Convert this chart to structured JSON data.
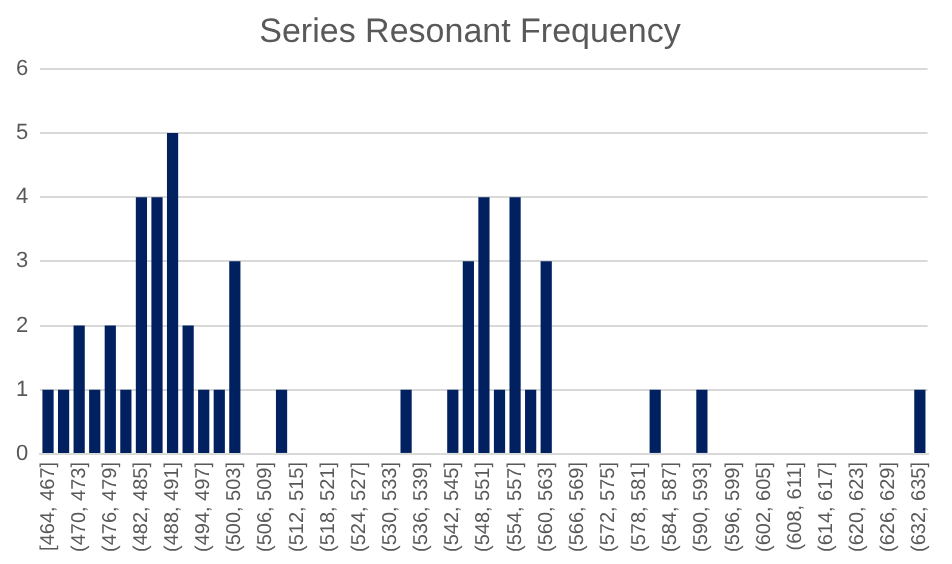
{
  "chart_data": {
    "type": "bar",
    "title": "Series Resonant Frequency",
    "categories": [
      "[464, 467]",
      null,
      "(470, 473]",
      null,
      "(476, 479]",
      null,
      "(482, 485]",
      null,
      "(488, 491]",
      null,
      "(494, 497]",
      null,
      "(500, 503]",
      null,
      "(506, 509]",
      null,
      "(512, 515]",
      null,
      "(518, 521]",
      null,
      "(524, 527]",
      null,
      "(530, 533]",
      null,
      "(536, 539]",
      null,
      "(542, 545]",
      null,
      "(548, 551]",
      null,
      "(554, 557]",
      null,
      "(560, 563]",
      null,
      "(566, 569]",
      null,
      "(572, 575]",
      null,
      "(578, 581]",
      null,
      "(584, 587]",
      null,
      "(590, 593]",
      null,
      "(596, 599]",
      null,
      "(602, 605]",
      null,
      "(608, 611]",
      null,
      "(614, 617]",
      null,
      "(620, 623]",
      null,
      "(626, 629]",
      null,
      "(632, 635]"
    ],
    "values": [
      1,
      1,
      2,
      1,
      2,
      1,
      4,
      4,
      5,
      2,
      1,
      1,
      3,
      0,
      0,
      1,
      0,
      0,
      0,
      0,
      0,
      0,
      0,
      1,
      0,
      0,
      1,
      3,
      4,
      1,
      4,
      1,
      3,
      0,
      0,
      0,
      0,
      0,
      0,
      1,
      0,
      0,
      1,
      0,
      0,
      0,
      0,
      0,
      0,
      0,
      0,
      0,
      0,
      0,
      0,
      0,
      1
    ],
    "color": "#002060",
    "ylim": [
      0,
      6
    ],
    "yticks": [
      0,
      1,
      2,
      3,
      4,
      5,
      6
    ],
    "grid": "y"
  }
}
